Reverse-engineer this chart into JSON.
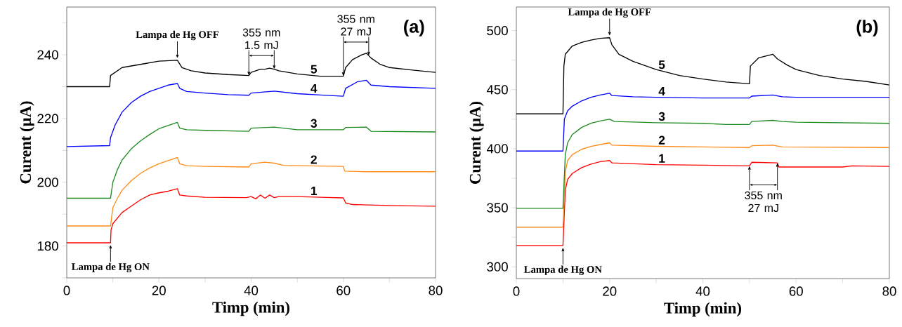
{
  "chart_data": [
    {
      "type": "line",
      "title": "(a)",
      "xlabel": "Timp (min)",
      "ylabel": "Curent (µA)",
      "xlim": [
        0,
        80
      ],
      "ylim": [
        170,
        255
      ],
      "xticks": [
        0,
        {
          "value": 10,
          "label": null
        },
        20,
        {
          "value": 30,
          "label": null
        },
        40,
        {
          "value": 50,
          "label": null
        },
        60,
        {
          "value": 70,
          "label": null
        },
        80
      ],
      "yticks": [
        {
          "value": 170,
          "label": null
        },
        180,
        {
          "value": 190,
          "label": null
        },
        200,
        {
          "value": 210,
          "label": null
        },
        220,
        {
          "value": 230,
          "label": null
        },
        240,
        {
          "value": 250,
          "label": null
        }
      ],
      "series": [
        {
          "name": "1",
          "color": "#ff0000",
          "x": [
            0,
            9.5,
            9.6,
            10,
            12,
            14,
            16,
            18,
            20,
            22,
            24,
            24.5,
            26,
            30,
            39,
            40,
            41,
            42,
            43,
            44,
            45,
            46,
            50,
            55,
            60,
            60.5,
            62,
            70,
            80
          ],
          "values": [
            181,
            181,
            185,
            187,
            190.5,
            192.5,
            194.5,
            196,
            196.7,
            197.2,
            198,
            196,
            195.7,
            195.3,
            195.2,
            195.5,
            194.8,
            196,
            195,
            196,
            195.2,
            195.5,
            195.5,
            195.3,
            195.1,
            193.5,
            193,
            192.7,
            192.5
          ]
        },
        {
          "name": "2",
          "color": "#ff8c1a",
          "x": [
            0,
            9.5,
            10,
            11,
            12,
            14,
            16,
            18,
            20,
            22,
            24,
            24.5,
            26,
            30,
            39.5,
            40,
            43,
            45,
            47,
            55,
            60,
            60.3,
            65,
            80
          ],
          "values": [
            186.3,
            186.3,
            192,
            195,
            197.5,
            200.5,
            202.8,
            204.5,
            205.8,
            206.8,
            207.8,
            205.8,
            205.2,
            205,
            204.8,
            205.8,
            206.3,
            206,
            205.3,
            205.1,
            205,
            203.5,
            203.3,
            203.3
          ]
        },
        {
          "name": "3",
          "color": "#1f8a1f",
          "x": [
            0,
            9.5,
            10,
            11,
            12,
            14,
            16,
            18,
            20,
            22,
            24,
            24.5,
            26,
            30,
            39.5,
            40,
            45,
            50,
            60,
            60.5,
            65,
            66,
            80
          ],
          "values": [
            195,
            195,
            200,
            204,
            207,
            210.5,
            213,
            215,
            216.8,
            217.8,
            218.8,
            217,
            216.5,
            216.3,
            216,
            217,
            217.3,
            216.5,
            216.5,
            217.2,
            217.3,
            216,
            215.8
          ]
        },
        {
          "name": "4",
          "color": "#0000ff",
          "x": [
            0,
            9.3,
            9.5,
            10.5,
            12,
            14,
            16,
            18,
            20,
            22,
            24,
            24.5,
            26,
            30,
            35,
            39.5,
            40,
            45,
            50,
            55,
            60,
            60.5,
            63,
            65,
            66,
            70,
            80
          ],
          "values": [
            211.2,
            211.5,
            214,
            218,
            222,
            225,
            227,
            228.5,
            229.5,
            230.5,
            231,
            229.5,
            228.5,
            228,
            227.5,
            227.3,
            228,
            228.6,
            227.8,
            227.4,
            227,
            229.5,
            231.5,
            232,
            230.5,
            230,
            229.5
          ]
        },
        {
          "name": "5",
          "color": "#000000",
          "x": [
            0,
            9.3,
            9.5,
            12,
            16,
            20,
            24,
            25,
            27,
            30,
            35,
            39.5,
            40,
            41,
            42,
            43,
            44,
            45,
            46,
            50,
            55,
            60,
            60.5,
            62,
            64,
            65,
            66,
            68,
            70,
            75,
            80
          ],
          "values": [
            230,
            230,
            233.5,
            236,
            237,
            238,
            238.3,
            236,
            235,
            234.3,
            233.8,
            233.5,
            234.5,
            235,
            235.5,
            235.5,
            235.8,
            235.5,
            235,
            234,
            233.3,
            233.3,
            236,
            238.5,
            240,
            240.5,
            239,
            237,
            236,
            235.2,
            234.5
          ]
        }
      ],
      "annotations": [
        {
          "text": "Lampa de Hg ON",
          "x": 9.5,
          "y": 181
        },
        {
          "text": "Lampa de Hg OFF",
          "x": 24,
          "y": 238.3
        },
        {
          "text": "355 nm 1.5 mJ",
          "x": 39.5,
          "y": 233.5
        },
        {
          "text": "355 nm 27 mJ",
          "x": 60,
          "y": 233.3
        }
      ]
    },
    {
      "type": "line",
      "title": "(b)",
      "xlabel": "Timp (min)",
      "ylabel": "Curent (µA)",
      "xlim": [
        0,
        80
      ],
      "ylim": [
        290,
        520
      ],
      "xticks": [
        0,
        {
          "value": 10,
          "label": null
        },
        20,
        {
          "value": 30,
          "label": null
        },
        40,
        {
          "value": 50,
          "label": null
        },
        60,
        {
          "value": 70,
          "label": null
        },
        80
      ],
      "yticks": [
        300,
        {
          "value": 325,
          "label": null
        },
        350,
        {
          "value": 375,
          "label": null
        },
        400,
        {
          "value": 425,
          "label": null
        },
        450,
        {
          "value": 475,
          "label": null
        },
        500
      ],
      "series": [
        {
          "name": "1",
          "color": "#ff0000",
          "x": [
            0,
            10,
            10.5,
            11,
            12,
            14,
            16,
            18,
            20,
            20.5,
            30,
            40,
            50,
            50.5,
            56,
            56.3,
            70,
            72,
            80
          ],
          "values": [
            318,
            318,
            365,
            374,
            379,
            384,
            387,
            389,
            390,
            388,
            386.5,
            386,
            385.5,
            388.5,
            388,
            384.5,
            384.5,
            385.5,
            385
          ]
        },
        {
          "name": "2",
          "color": "#ff8c1a",
          "x": [
            0,
            10,
            10.5,
            11,
            12,
            14,
            16,
            18,
            20,
            20.5,
            30,
            40,
            50,
            50.5,
            55,
            57,
            80
          ],
          "values": [
            333.5,
            333.5,
            380,
            390,
            395,
            399.5,
            402,
            403.5,
            405,
            403,
            402,
            401.5,
            401,
            402.5,
            403,
            401.5,
            401
          ]
        },
        {
          "name": "3",
          "color": "#1f8a1f",
          "x": [
            0,
            10,
            10.5,
            11,
            12,
            14,
            16,
            18,
            20,
            21,
            30,
            40,
            45,
            50,
            50.5,
            55,
            57,
            60,
            80
          ],
          "values": [
            349.5,
            349.5,
            395,
            405,
            412,
            418,
            421.5,
            423.5,
            425,
            423,
            422,
            421.5,
            420.5,
            420.5,
            423,
            424,
            423,
            422.5,
            421.5
          ]
        },
        {
          "name": "4",
          "color": "#0000ff",
          "x": [
            0,
            10,
            10.3,
            11,
            12,
            14,
            16,
            18,
            20,
            20.5,
            25,
            30,
            40,
            50,
            50.5,
            55,
            57,
            60,
            80
          ],
          "values": [
            398,
            398,
            425,
            432,
            436,
            440.5,
            443.5,
            445.5,
            447,
            445,
            444,
            443.5,
            443,
            443,
            444.5,
            445.5,
            444,
            443.5,
            443.5
          ]
        },
        {
          "name": "5",
          "color": "#000000",
          "x": [
            0,
            10,
            10.2,
            10.5,
            12,
            14,
            16,
            18,
            20,
            20.5,
            22,
            25,
            30,
            35,
            40,
            45,
            50,
            50.2,
            52,
            55,
            56,
            58,
            60,
            65,
            70,
            75,
            80
          ],
          "values": [
            429.5,
            429.5,
            470,
            480,
            487,
            490,
            492,
            493.5,
            494,
            488,
            480,
            474,
            467,
            462,
            459,
            456.5,
            455,
            470,
            477,
            480,
            476,
            471,
            467,
            462,
            459,
            457,
            454
          ]
        }
      ],
      "annotations": [
        {
          "text": "Lampa de Hg ON",
          "x": 10,
          "y": 318
        },
        {
          "text": "Lampa de Hg OFF",
          "x": 20,
          "y": 494
        },
        {
          "text": "355 nm 27 mJ",
          "x": 50,
          "y": 385.5
        }
      ]
    }
  ]
}
